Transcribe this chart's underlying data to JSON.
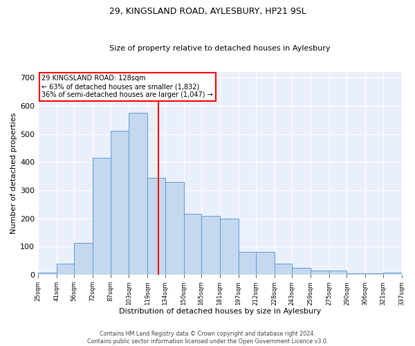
{
  "title_line1": "29, KINGSLAND ROAD, AYLESBURY, HP21 9SL",
  "title_line2": "Size of property relative to detached houses in Aylesbury",
  "xlabel": "Distribution of detached houses by size in Aylesbury",
  "ylabel": "Number of detached properties",
  "bar_color": "#c5d8f0",
  "bar_edge_color": "#5b9bd5",
  "background_color": "#eaf0fb",
  "grid_color": "#ffffff",
  "vline_x": 128,
  "vline_color": "red",
  "annotation_line1": "29 KINGSLAND ROAD: 128sqm",
  "annotation_line2": "← 63% of detached houses are smaller (1,832)",
  "annotation_line3": "36% of semi-detached houses are larger (1,047) →",
  "annotation_box_color": "white",
  "annotation_box_edge": "red",
  "footnote1": "Contains HM Land Registry data © Crown copyright and database right 2024.",
  "footnote2": "Contains public sector information licensed under the Open Government Licence v3.0.",
  "bin_edges": [
    25,
    41,
    56,
    72,
    87,
    103,
    119,
    134,
    150,
    165,
    181,
    197,
    212,
    228,
    243,
    259,
    275,
    290,
    306,
    321,
    337
  ],
  "bin_labels": [
    "25sqm",
    "41sqm",
    "56sqm",
    "72sqm",
    "87sqm",
    "103sqm",
    "119sqm",
    "134sqm",
    "150sqm",
    "165sqm",
    "181sqm",
    "197sqm",
    "212sqm",
    "228sqm",
    "243sqm",
    "259sqm",
    "275sqm",
    "290sqm",
    "306sqm",
    "321sqm",
    "337sqm"
  ],
  "bar_heights": [
    8,
    40,
    113,
    415,
    510,
    575,
    345,
    330,
    215,
    210,
    200,
    80,
    80,
    40,
    25,
    15,
    15,
    5,
    5,
    8
  ],
  "ylim": [
    0,
    720
  ],
  "yticks": [
    0,
    100,
    200,
    300,
    400,
    500,
    600,
    700
  ],
  "title_fontsize": 9,
  "subtitle_fontsize": 8,
  "ylabel_fontsize": 8,
  "xlabel_fontsize": 8
}
